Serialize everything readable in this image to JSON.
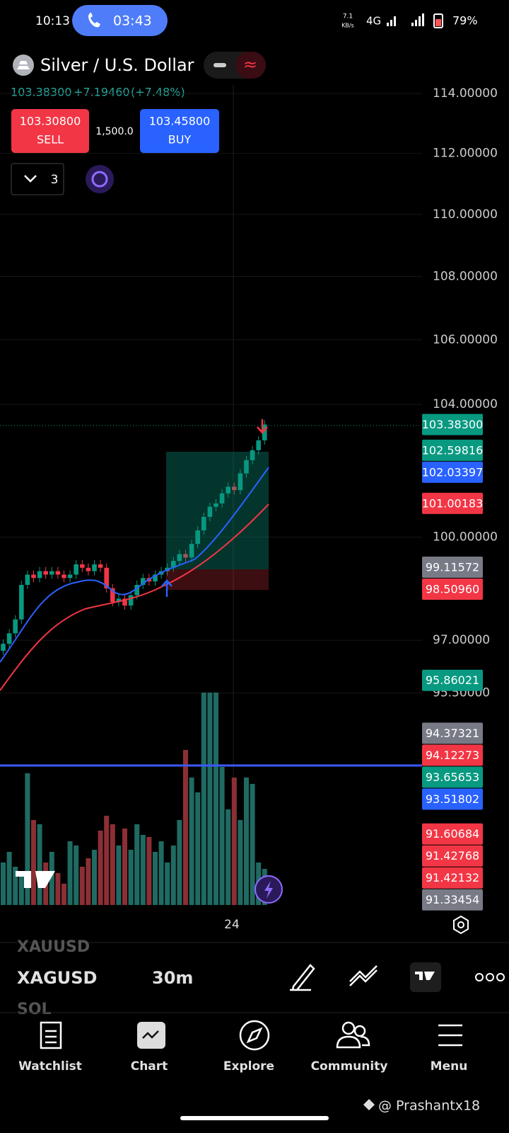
{
  "status": {
    "time": "10:13",
    "call": "03:43",
    "speed": "7.1",
    "speed_unit": "KB/s",
    "network": "4G",
    "battery": "79%"
  },
  "symbol": {
    "name": "Silver / U.S. Dollar",
    "price": "103.38300",
    "change": "+7.19460",
    "change_pct": "(+7.48%)"
  },
  "trade": {
    "sell_price": "103.30800",
    "sell_label": "SELL",
    "quantity": "1,500.0",
    "buy_price": "103.45800",
    "buy_label": "BUY",
    "count": "3"
  },
  "chart": {
    "log_scale": true,
    "yticks": [
      {
        "value": 114,
        "label": "114.00000"
      },
      {
        "value": 112,
        "label": "112.00000"
      },
      {
        "value": 110,
        "label": "110.00000"
      },
      {
        "value": 108,
        "label": "108.00000"
      },
      {
        "value": 106,
        "label": "106.00000"
      },
      {
        "value": 104,
        "label": "104.00000"
      },
      {
        "value": 100,
        "label": "100.00000"
      },
      {
        "value": 97,
        "label": "97.00000"
      },
      {
        "value": 95.5,
        "label": "95.50000"
      }
    ],
    "first_open": 96.7,
    "closes": [
      96.9,
      97.2,
      97.6,
      98.6,
      98.9,
      98.8,
      99.0,
      98.9,
      99.0,
      98.9,
      98.8,
      98.9,
      99.2,
      99.1,
      99.0,
      99.2,
      99.1,
      98.5,
      98.1,
      98.2,
      98.0,
      98.3,
      98.6,
      98.8,
      98.7,
      98.9,
      99.0,
      99.1,
      99.3,
      99.5,
      99.4,
      99.8,
      100.2,
      100.6,
      100.9,
      101.0,
      101.3,
      101.5,
      101.4,
      101.9,
      102.3,
      102.6,
      102.9,
      103.383
    ],
    "volumes": [
      20,
      25,
      18,
      15,
      62,
      40,
      38,
      20,
      25,
      15,
      10,
      30,
      28,
      18,
      22,
      26,
      35,
      42,
      38,
      28,
      36,
      26,
      38,
      33,
      32,
      25,
      30,
      20,
      28,
      40,
      73,
      60,
      53,
      100,
      100,
      100,
      65,
      45,
      60,
      40,
      60,
      57,
      20,
      17
    ],
    "price_tags": [
      {
        "value": 103.383,
        "label": "103.38300",
        "color": "#089981"
      },
      {
        "value": 102.59816,
        "label": "102.59816",
        "color": "#089981"
      },
      {
        "value": 102.03397,
        "label": "102.03397",
        "color": "#2962ff"
      },
      {
        "value": 101.00183,
        "label": "101.00183",
        "color": "#f23645"
      },
      {
        "value": 99.11572,
        "label": "99.11572",
        "color": "#787b86"
      },
      {
        "value": 98.5096,
        "label": "98.50960",
        "color": "#f23645"
      },
      {
        "value": 95.86021,
        "label": "95.86021",
        "color": "#089981"
      },
      {
        "value": 94.37321,
        "label": "94.37321",
        "color": "#787b86"
      },
      {
        "value": 94.12273,
        "label": "94.12273",
        "color": "#f23645"
      },
      {
        "value": 93.65653,
        "label": "93.65653",
        "color": "#089981"
      },
      {
        "value": 93.51802,
        "label": "93.51802",
        "color": "#2962ff"
      },
      {
        "value": 91.60684,
        "label": "91.60684",
        "color": "#f23645"
      },
      {
        "value": 91.42768,
        "label": "91.42768",
        "color": "#f23645"
      },
      {
        "value": 91.42132,
        "label": "91.42132",
        "color": "#f23645"
      },
      {
        "value": 91.33454,
        "label": "91.33454",
        "color": "#787b86"
      }
    ],
    "x_label": "24"
  },
  "toolbar": {
    "prev_symbol": "XAUUSD",
    "symbol": "XAGUSD",
    "interval": "30m",
    "next_symbol": "SOL"
  },
  "nav": [
    "Watchlist",
    "Chart",
    "Explore",
    "Community",
    "Menu"
  ],
  "watermark": "@ Prashantx18"
}
